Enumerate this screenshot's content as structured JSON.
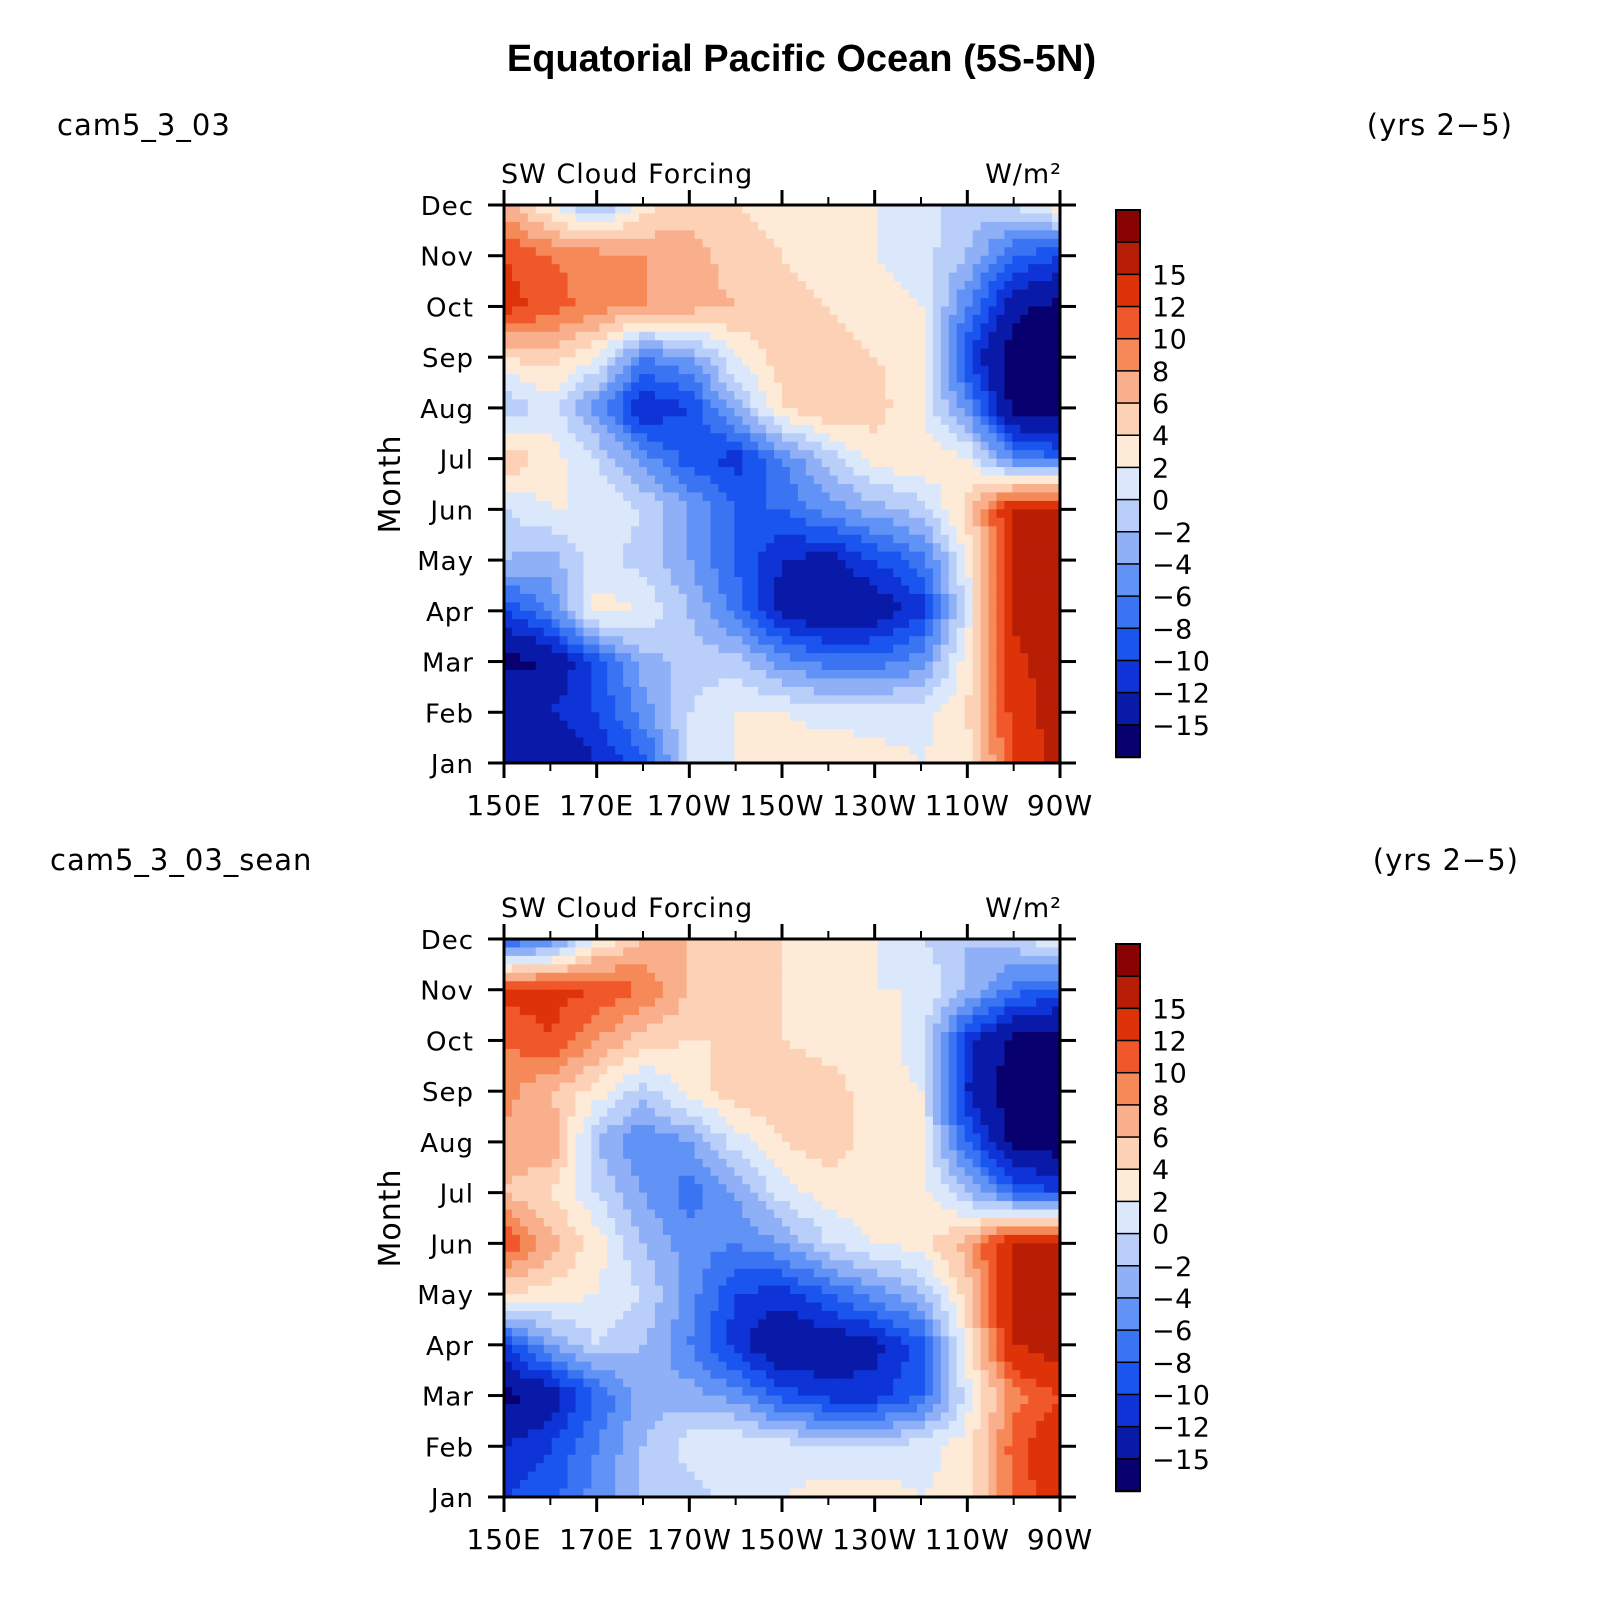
{
  "page_title": "Equatorial Pacific Ocean (5S-5N)",
  "colors": {
    "levels_palette": [
      "#08006f",
      "#0a1aa8",
      "#0e33d6",
      "#1b55f0",
      "#3a74f2",
      "#6192f5",
      "#8fb0f7",
      "#b9cffa",
      "#dbe8fc",
      "#fdebd7",
      "#fcd1b6",
      "#f9af8c",
      "#f58958",
      "#f0572a",
      "#de3209",
      "#b81e05",
      "#8a0303"
    ],
    "frame": "#000000"
  },
  "chart_data": [
    {
      "type": "heatmap",
      "subtype": "filled-contour",
      "case": "cam5_3_03",
      "years": "(yrs 2−5)",
      "title": "SW Cloud Forcing",
      "units": "W/m²",
      "xlabel": "",
      "ylabel": "Month",
      "x_ticks": [
        "150E",
        "170E",
        "170W",
        "150W",
        "130W",
        "110W",
        "90W"
      ],
      "y_ticks": [
        "Jan",
        "Feb",
        "Mar",
        "Apr",
        "May",
        "Jun",
        "Jul",
        "Aug",
        "Sep",
        "Oct",
        "Nov",
        "Dec"
      ],
      "xlim": [
        150,
        270
      ],
      "ylim": [
        1,
        12
      ],
      "colorbar_labels": [
        "15",
        "12",
        "10",
        "8",
        "6",
        "4",
        "2",
        "0",
        "−2",
        "−4",
        "−6",
        "−8",
        "−10",
        "−12",
        "−15"
      ],
      "grid_lon": [
        150,
        160,
        170,
        180,
        190,
        200,
        210,
        220,
        230,
        240,
        250,
        260,
        270
      ],
      "grid_values": [
        [
          -14,
          -15,
          -12,
          -9,
          0,
          2,
          3,
          4,
          3,
          2,
          3,
          12,
          16
        ],
        [
          -12,
          -12,
          -10,
          -5,
          0,
          2,
          2,
          1,
          1,
          1,
          4,
          13,
          17
        ],
        [
          -16,
          -15,
          -9,
          -3,
          -1,
          -1,
          -5,
          -7,
          -7,
          -5,
          3,
          14,
          17
        ],
        [
          -10,
          -6,
          3,
          2,
          -2,
          -7,
          -13,
          -15,
          -14,
          -11,
          1,
          16,
          18
        ],
        [
          -2,
          -3,
          1,
          -1,
          -4,
          -8,
          -12,
          -13,
          -10,
          -7,
          2,
          15,
          18
        ],
        [
          0,
          2,
          2,
          0,
          -4,
          -8,
          -8,
          -5,
          -3,
          -1,
          5,
          15,
          16
        ],
        [
          6,
          3,
          0,
          -5,
          -9,
          -11,
          -6,
          -1,
          3,
          4,
          2,
          -6,
          -8
        ],
        [
          -2,
          1,
          -5,
          -12,
          -10,
          -3,
          4,
          6,
          5,
          2,
          -5,
          -16,
          -17
        ],
        [
          4,
          5,
          2,
          -6,
          -4,
          2,
          5,
          5,
          4,
          3,
          -10,
          -17,
          -18
        ],
        [
          13,
          11,
          9,
          8,
          7,
          6,
          5,
          4,
          3,
          2,
          -6,
          -14,
          -16
        ],
        [
          12,
          10,
          9,
          8,
          7,
          5,
          4,
          3,
          2,
          1,
          -2,
          -8,
          -10
        ],
        [
          7,
          2,
          -3,
          3,
          5,
          4,
          3,
          3,
          2,
          1,
          -1,
          0,
          4
        ]
      ]
    },
    {
      "type": "heatmap",
      "subtype": "filled-contour",
      "case": "cam5_3_03_sean",
      "years": "(yrs 2−5)",
      "title": "SW Cloud Forcing",
      "units": "W/m²",
      "xlabel": "",
      "ylabel": "Month",
      "x_ticks": [
        "150E",
        "170E",
        "170W",
        "150W",
        "130W",
        "110W",
        "90W"
      ],
      "y_ticks": [
        "Jan",
        "Feb",
        "Mar",
        "Apr",
        "May",
        "Jun",
        "Jul",
        "Aug",
        "Sep",
        "Oct",
        "Nov",
        "Dec"
      ],
      "xlim": [
        150,
        270
      ],
      "ylim": [
        1,
        12
      ],
      "colorbar_labels": [
        "15",
        "12",
        "10",
        "8",
        "6",
        "4",
        "2",
        "0",
        "−2",
        "−4",
        "−6",
        "−8",
        "−10",
        "−12",
        "−15"
      ],
      "grid_lon": [
        150,
        160,
        170,
        180,
        190,
        200,
        210,
        220,
        230,
        240,
        250,
        260,
        270
      ],
      "grid_values": [
        [
          -10,
          -9,
          -5,
          -2,
          -1,
          1,
          2,
          3,
          3,
          2,
          3,
          10,
          14
        ],
        [
          -12,
          -10,
          -6,
          -2,
          1,
          2,
          1,
          0,
          0,
          1,
          3,
          11,
          15
        ],
        [
          -16,
          -14,
          -8,
          -3,
          -3,
          -5,
          -9,
          -11,
          -11,
          -8,
          1,
          9,
          12
        ],
        [
          -10,
          -4,
          0,
          -2,
          -6,
          -11,
          -15,
          -14,
          -13,
          -9,
          3,
          15,
          17
        ],
        [
          4,
          3,
          2,
          0,
          -5,
          -10,
          -11,
          -8,
          -5,
          -2,
          5,
          16,
          18
        ],
        [
          12,
          7,
          3,
          -2,
          -5,
          -6,
          -4,
          0,
          2,
          3,
          7,
          16,
          16
        ],
        [
          6,
          4,
          0,
          -4,
          -7,
          -4,
          1,
          3,
          4,
          3,
          -2,
          -8,
          -10
        ],
        [
          7,
          8,
          -2,
          -6,
          -4,
          1,
          4,
          5,
          3,
          2,
          -8,
          -16,
          -17
        ],
        [
          9,
          6,
          3,
          -1,
          3,
          5,
          6,
          5,
          3,
          2,
          -12,
          -17,
          -18
        ],
        [
          10,
          12,
          8,
          5,
          4,
          4,
          4,
          3,
          3,
          1,
          -11,
          -16,
          -17
        ],
        [
          13,
          13,
          12,
          10,
          6,
          5,
          4,
          3,
          2,
          2,
          -2,
          -7,
          -9
        ],
        [
          -9,
          -6,
          2,
          6,
          6,
          5,
          4,
          3,
          2,
          0,
          -2,
          -1,
          3
        ]
      ]
    }
  ]
}
